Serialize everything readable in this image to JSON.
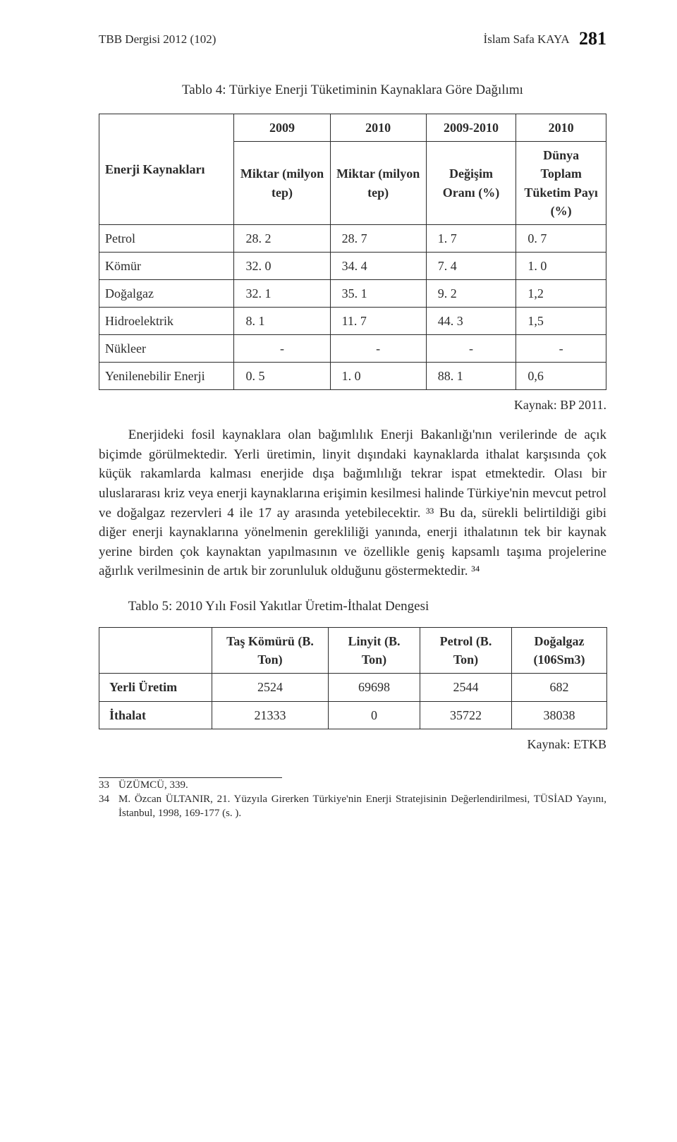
{
  "header": {
    "journal": "TBB Dergisi 2012 (102)",
    "author": "İslam Safa KAYA",
    "page_number": "281"
  },
  "table4": {
    "title": "Tablo 4: Türkiye Enerji Tüketiminin Kaynaklara Göre Dağılımı",
    "head_row1": [
      "",
      "2009",
      "2010",
      "2009-2010",
      "2010"
    ],
    "head_row2": [
      "Enerji Kaynakları",
      "Miktar (milyon tep)",
      "Miktar (milyon tep)",
      "Değişim Oranı (%)",
      "Dünya Toplam Tüketim Payı (%)"
    ],
    "rows": [
      [
        "Petrol",
        "28. 2",
        "28. 7",
        "1. 7",
        "0. 7"
      ],
      [
        "Kömür",
        "32. 0",
        "34. 4",
        "7. 4",
        "1. 0"
      ],
      [
        "Doğalgaz",
        "32. 1",
        "35. 1",
        "9. 2",
        "1,2"
      ],
      [
        "Hidroelektrik",
        "8. 1",
        "11. 7",
        "44. 3",
        "1,5"
      ],
      [
        "Nükleer",
        "-",
        "-",
        "-",
        "-"
      ],
      [
        "Yenilenebilir Enerji",
        "0. 5",
        "1. 0",
        "88. 1",
        "0,6"
      ]
    ],
    "source": "Kaynak: BP 2011."
  },
  "paragraph1": "Enerjideki fosil kaynaklara olan bağımlılık Enerji Bakanlığı'nın verilerinde de açık biçimde görülmektedir. Yerli üretimin, linyit dışındaki kaynaklarda ithalat karşısında çok küçük rakamlarda kalması enerjide dışa bağımlılığı tekrar ispat etmektedir. Olası bir uluslararası kriz veya enerji kaynaklarına erişimin kesilmesi halinde Türkiye'nin mevcut petrol ve doğalgaz rezervleri 4 ile 17 ay arasında yetebilecektir. ³³ Bu da, sürekli belirtildiği gibi diğer enerji kaynaklarına yönelmenin gerekliliği yanında, enerji ithalatının tek bir kaynak yerine birden çok kaynaktan yapılmasının ve özellikle geniş kapsamlı taşıma projelerine ağırlık verilmesinin de artık bir zorunluluk olduğunu göstermektedir. ³⁴",
  "table5": {
    "title": "Tablo 5: 2010 Yılı Fosil Yakıtlar Üretim-İthalat Dengesi",
    "head": [
      "",
      "Taş Kömürü (B. Ton)",
      "Linyit (B. Ton)",
      "Petrol (B. Ton)",
      "Doğalgaz (106Sm3)"
    ],
    "rows": [
      [
        "Yerli Üretim",
        "2524",
        "69698",
        "2544",
        "682"
      ],
      [
        "İthalat",
        "21333",
        "0",
        "35722",
        "38038"
      ]
    ],
    "source": "Kaynak: ETKB"
  },
  "footnotes": [
    {
      "n": "33",
      "t": "ÜZÜMCÜ, 339."
    },
    {
      "n": "34",
      "t": "M. Özcan ÜLTANIR, 21. Yüzyıla Girerken Türkiye'nin Enerji Stratejisinin Değerlendirilmesi, TÜSİAD Yayını, İstanbul, 1998, 169-177 (s. )."
    }
  ]
}
